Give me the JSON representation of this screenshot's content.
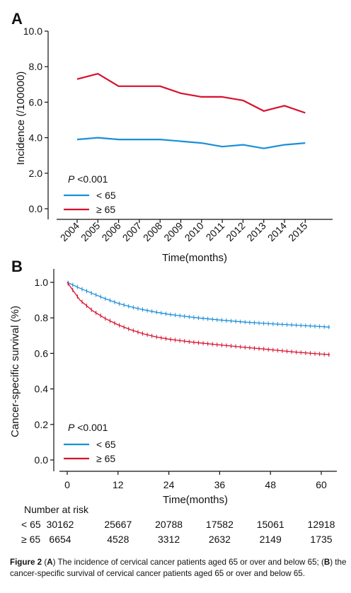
{
  "chart_data": [
    {
      "panel": "A",
      "type": "line",
      "ylabel": "Incidence (/100000)",
      "xlabel": "Time(months)",
      "ylim": [
        0,
        10
      ],
      "yticks": [
        "0.0",
        "2.0",
        "4.0",
        "6.0",
        "8.0",
        "10.0"
      ],
      "categories": [
        "2004",
        "2005",
        "2006",
        "2007",
        "2008",
        "2009",
        "2010",
        "2011",
        "2012",
        "2013",
        "2014",
        "2015"
      ],
      "annotation_p": "P",
      "annotation_rest": " <0.001",
      "series": [
        {
          "name": "< 65",
          "color": "#1a8fd8",
          "values": [
            3.9,
            4.0,
            3.9,
            3.9,
            3.9,
            3.8,
            3.7,
            3.5,
            3.6,
            3.4,
            3.6,
            3.7
          ]
        },
        {
          "name": "≥ 65",
          "color": "#d7102e",
          "values": [
            7.3,
            7.6,
            6.9,
            6.9,
            6.9,
            6.5,
            6.3,
            6.3,
            6.1,
            5.5,
            5.8,
            5.4
          ]
        }
      ],
      "legend": "bottom-left"
    },
    {
      "panel": "B",
      "type": "line",
      "ylabel": "Cancer-specific survival (%)",
      "xlabel": "Time(months)",
      "xlim": [
        0,
        62
      ],
      "ylim": [
        0,
        1
      ],
      "xticks": [
        "0",
        "12",
        "24",
        "36",
        "48",
        "60"
      ],
      "yticks": [
        "0.0",
        "0.2",
        "0.4",
        "0.6",
        "0.8",
        "1.0"
      ],
      "annotation_p": "P",
      "annotation_rest": " <0.001",
      "series": [
        {
          "name": "< 65",
          "color": "#1a8fd8",
          "x": [
            0,
            3,
            6,
            9,
            12,
            15,
            18,
            21,
            24,
            30,
            36,
            42,
            48,
            54,
            60,
            62
          ],
          "values": [
            1.0,
            0.967,
            0.937,
            0.908,
            0.882,
            0.862,
            0.846,
            0.832,
            0.82,
            0.802,
            0.788,
            0.776,
            0.767,
            0.759,
            0.751,
            0.748
          ]
        },
        {
          "name": "≥ 65",
          "color": "#d7102e",
          "x": [
            0,
            3,
            6,
            9,
            12,
            15,
            18,
            21,
            24,
            30,
            36,
            42,
            48,
            54,
            60,
            62
          ],
          "values": [
            1.0,
            0.9,
            0.84,
            0.796,
            0.761,
            0.733,
            0.71,
            0.693,
            0.68,
            0.662,
            0.648,
            0.634,
            0.621,
            0.607,
            0.596,
            0.593
          ]
        }
      ],
      "legend": "bottom-left",
      "risk_table": {
        "title": "Number at risk",
        "rows": [
          {
            "label": "< 65",
            "values": [
              "30162",
              "25667",
              "20788",
              "17582",
              "15061",
              "12918"
            ]
          },
          {
            "label": "≥ 65",
            "values": [
              "6654",
              "4528",
              "3312",
              "2632",
              "2149",
              "1735"
            ]
          }
        ]
      }
    }
  ],
  "caption": {
    "label": "Figure 2",
    "part1": " (",
    "a": "A",
    "part2": ") The incidence of cervical cancer patients aged 65 or over and below 65; (",
    "b": "B",
    "part3": ") the cancer-specific survival of cervical cancer patients aged 65 or over and below 65."
  }
}
